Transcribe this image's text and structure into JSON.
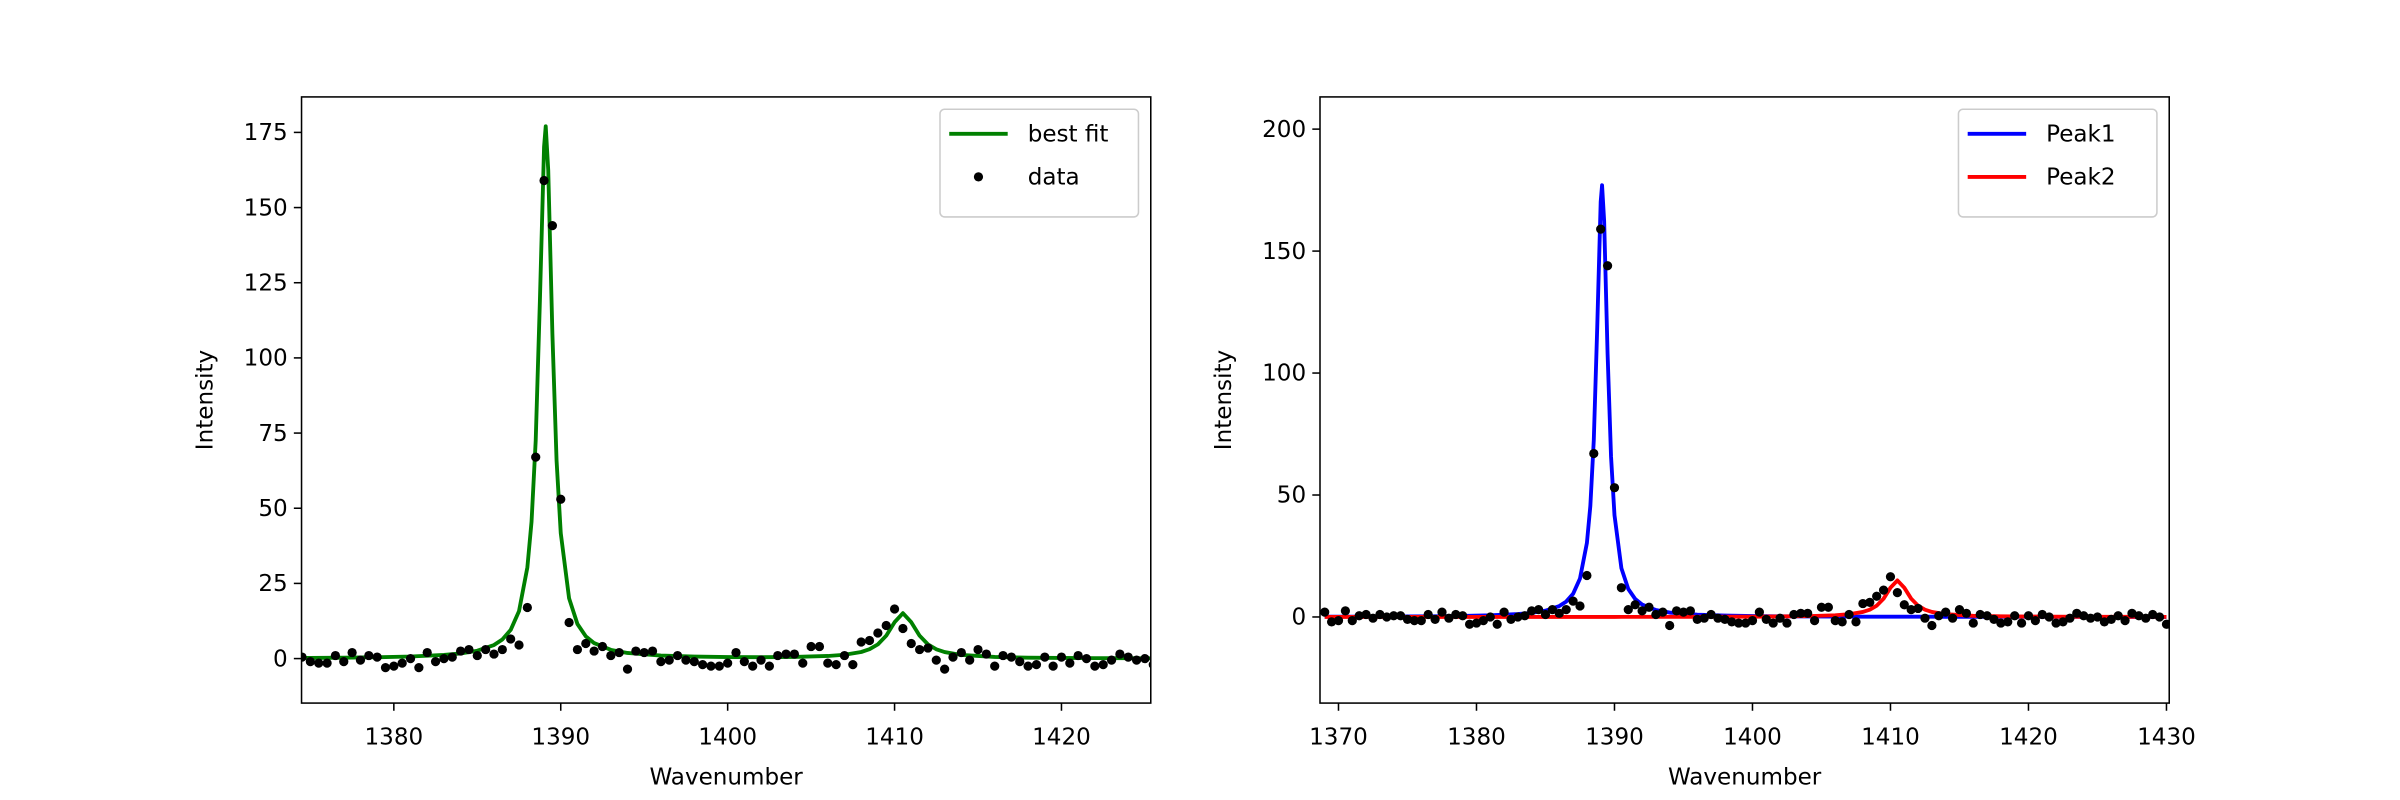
{
  "chart_data": [
    {
      "type": "line",
      "xlabel": "Wavenumber",
      "ylabel": "Intensity",
      "xlim": [
        1374.47,
        1425.35
      ],
      "ylim": [
        -14.8,
        186.8
      ],
      "xticks": [
        1380,
        1390,
        1400,
        1410,
        1420
      ],
      "yticks": [
        0,
        25,
        50,
        75,
        100,
        125,
        150,
        175
      ],
      "legend": "upper right",
      "series": [
        {
          "name": "best fit",
          "color": "#008000",
          "type": "line",
          "x": [
            1369,
            1371,
            1373,
            1375,
            1377,
            1379,
            1381,
            1383,
            1384,
            1385,
            1386,
            1386.5,
            1387,
            1387.5,
            1388,
            1388.25,
            1388.5,
            1388.75,
            1389,
            1389.1,
            1389.25,
            1389.5,
            1389.75,
            1390,
            1390.5,
            1391,
            1391.5,
            1392,
            1393,
            1394,
            1396,
            1398,
            1400,
            1402,
            1404,
            1406,
            1407,
            1408,
            1408.5,
            1409,
            1409.5,
            1410,
            1410.5,
            1411,
            1411.5,
            1412,
            1412.5,
            1413,
            1414,
            1416,
            1418,
            1420,
            1422,
            1424,
            1426,
            1428,
            1430
          ],
          "values": [
            0.12,
            0.15,
            0.18,
            0.23,
            0.31,
            0.45,
            0.69,
            1.2,
            1.71,
            2.61,
            4.51,
            6.34,
            9.53,
            15.78,
            30.34,
            45.53,
            72.53,
            118.83,
            170.23,
            177.03,
            162.43,
            107.93,
            65.83,
            41.73,
            20.04,
            11.5,
            7.4,
            5.15,
            2.91,
            1.87,
            0.99,
            0.66,
            0.5,
            0.47,
            0.55,
            0.86,
            1.27,
            2.19,
            3.12,
            4.73,
            7.6,
            12.1,
            15.1,
            12.1,
            7.6,
            4.72,
            3.1,
            2.17,
            1.2,
            0.54,
            0.31,
            0.21,
            0.15,
            0.12,
            0.09,
            0.08,
            0.07
          ]
        },
        {
          "name": "data",
          "color": "#000000",
          "type": "scatter",
          "x": [
            1374.5,
            1375,
            1375.5,
            1376,
            1376.5,
            1377,
            1377.5,
            1378,
            1378.5,
            1379,
            1379.5,
            1380,
            1380.5,
            1381,
            1381.5,
            1382,
            1382.5,
            1383,
            1383.5,
            1384,
            1384.5,
            1385,
            1385.5,
            1386,
            1386.5,
            1387,
            1387.5,
            1388,
            1388.5,
            1389,
            1389.5,
            1390,
            1390.5,
            1391,
            1391.5,
            1392,
            1392.5,
            1393,
            1393.5,
            1394,
            1394.5,
            1395,
            1395.5,
            1396,
            1396.5,
            1397,
            1397.5,
            1398,
            1398.5,
            1399,
            1399.5,
            1400,
            1400.5,
            1401,
            1401.5,
            1402,
            1402.5,
            1403,
            1403.5,
            1404,
            1404.5,
            1405,
            1405.5,
            1406,
            1406.5,
            1407,
            1407.5,
            1408,
            1408.5,
            1409,
            1409.5,
            1410,
            1410.5,
            1411,
            1411.5,
            1412,
            1412.5,
            1413,
            1413.5,
            1414,
            1414.5,
            1415,
            1415.5,
            1416,
            1416.5,
            1417,
            1417.5,
            1418,
            1418.5,
            1419,
            1419.5,
            1420,
            1420.5,
            1421,
            1421.5,
            1422,
            1422.5,
            1423,
            1423.5,
            1424,
            1424.5,
            1425,
            1425.5
          ],
          "values": [
            0.5,
            -1,
            -1.5,
            -1.5,
            1,
            -1,
            2,
            -0.5,
            1,
            0.5,
            -3,
            -2.5,
            -1.5,
            0,
            -3,
            2,
            -1,
            0,
            0.5,
            2.5,
            3,
            1,
            3,
            1.5,
            3,
            6.5,
            4.5,
            17,
            67,
            159,
            144,
            53,
            12,
            3,
            5,
            2.5,
            4,
            1,
            2,
            -3.5,
            2.5,
            2,
            2.5,
            -1,
            -0.5,
            1,
            -0.5,
            -1,
            -2,
            -2.5,
            -2.5,
            -1.5,
            2,
            -1,
            -2.5,
            -0.5,
            -2.5,
            1,
            1.5,
            1.5,
            -1.5,
            4,
            4,
            -1.5,
            -2,
            1,
            -2,
            5.5,
            6,
            8.5,
            11,
            16.5,
            10,
            5,
            3,
            3.5,
            -0.5,
            -3.5,
            0.5,
            2,
            -0.5,
            3,
            1.5,
            -2.5,
            1,
            0.5,
            -1,
            -2.5,
            -2,
            0.5,
            -2.5,
            0.5,
            -1.5,
            1,
            0,
            -2.5,
            -2,
            -0.5,
            1.5,
            0.5,
            -0.5,
            0,
            -2
          ]
        }
      ]
    },
    {
      "type": "line",
      "xlabel": "Wavenumber",
      "ylabel": "Intensity",
      "xlim": [
        1368.66,
        1430.2
      ],
      "ylim": [
        -35.3,
        213.2
      ],
      "xticks": [
        1370,
        1380,
        1390,
        1400,
        1410,
        1420,
        1430
      ],
      "yticks": [
        0,
        50,
        100,
        150,
        200
      ],
      "legend": "upper right",
      "series": [
        {
          "name": "Peak1",
          "color": "#0000ff",
          "type": "line",
          "x": [
            1369,
            1371,
            1373,
            1375,
            1377,
            1379,
            1381,
            1383,
            1384,
            1385,
            1386,
            1386.5,
            1387,
            1387.5,
            1388,
            1388.25,
            1388.5,
            1388.75,
            1389,
            1389.1,
            1389.25,
            1389.5,
            1389.75,
            1390,
            1390.5,
            1391,
            1391.5,
            1392,
            1393,
            1394,
            1396,
            1398,
            1400,
            1402,
            1404,
            1406,
            1407,
            1408,
            1408.5,
            1409,
            1409.5,
            1410,
            1410.5,
            1411,
            1411.5,
            1412,
            1412.5,
            1413,
            1414,
            1416,
            1418,
            1420,
            1422,
            1424,
            1426,
            1428,
            1430
          ],
          "values": [
            0.11,
            0.14,
            0.17,
            0.22,
            0.3,
            0.43,
            0.67,
            1.18,
            1.69,
            2.59,
            4.49,
            6.31,
            9.5,
            15.75,
            30.31,
            45.5,
            72.5,
            118.8,
            170.2,
            177,
            162.4,
            107.9,
            65.8,
            41.7,
            20,
            11.46,
            7.36,
            5.11,
            2.86,
            1.82,
            0.92,
            0.56,
            0.37,
            0.27,
            0.2,
            0.15,
            0.14,
            0.12,
            0.12,
            0.11,
            0.1,
            0.1,
            0.1,
            0.1,
            0.1,
            0.1,
            0.1,
            0.1,
            0.07,
            0.06,
            0.05,
            0.05,
            0.04,
            0.04,
            0.03,
            0.03,
            0.03
          ]
        },
        {
          "name": "Peak2",
          "color": "#ff0000",
          "type": "line",
          "x": [
            1369,
            1371,
            1373,
            1375,
            1377,
            1379,
            1381,
            1383,
            1384,
            1385,
            1386,
            1386.5,
            1387,
            1387.5,
            1388,
            1388.25,
            1388.5,
            1388.75,
            1389,
            1389.1,
            1389.25,
            1389.5,
            1389.75,
            1390,
            1390.5,
            1391,
            1391.5,
            1392,
            1393,
            1394,
            1396,
            1398,
            1400,
            1402,
            1404,
            1406,
            1407,
            1408,
            1408.5,
            1409,
            1409.5,
            1410,
            1410.5,
            1411,
            1411.5,
            1412,
            1412.5,
            1413,
            1414,
            1416,
            1418,
            1420,
            1422,
            1424,
            1426,
            1428,
            1430
          ],
          "values": [
            0.01,
            0.01,
            0.01,
            0.01,
            0.01,
            0.02,
            0.02,
            0.02,
            0.02,
            0.02,
            0.02,
            0.03,
            0.03,
            0.03,
            0.03,
            0.03,
            0.03,
            0.03,
            0.03,
            0.03,
            0.03,
            0.03,
            0.03,
            0.03,
            0.04,
            0.04,
            0.04,
            0.04,
            0.05,
            0.05,
            0.07,
            0.1,
            0.13,
            0.2,
            0.35,
            0.71,
            1.13,
            2.07,
            3,
            4.62,
            7.5,
            12,
            15,
            12,
            7.5,
            4.62,
            3,
            2.07,
            1.13,
            0.48,
            0.26,
            0.16,
            0.11,
            0.08,
            0.06,
            0.05,
            0.04
          ]
        },
        {
          "color": "#000000",
          "type": "scatter",
          "x": [
            1369,
            1369.5,
            1370,
            1370.5,
            1371,
            1371.5,
            1372,
            1372.5,
            1373,
            1373.5,
            1374,
            1374.5,
            1375,
            1375.5,
            1376,
            1376.5,
            1377,
            1377.5,
            1378,
            1378.5,
            1379,
            1379.5,
            1380,
            1380.5,
            1381,
            1381.5,
            1382,
            1382.5,
            1383,
            1383.5,
            1384,
            1384.5,
            1385,
            1385.5,
            1386,
            1386.5,
            1387,
            1387.5,
            1388,
            1388.5,
            1389,
            1389.5,
            1390,
            1390.5,
            1391,
            1391.5,
            1392,
            1392.5,
            1393,
            1393.5,
            1394,
            1394.5,
            1395,
            1395.5,
            1396,
            1396.5,
            1397,
            1397.5,
            1398,
            1398.5,
            1399,
            1399.5,
            1400,
            1400.5,
            1401,
            1401.5,
            1402,
            1402.5,
            1403,
            1403.5,
            1404,
            1404.5,
            1405,
            1405.5,
            1406,
            1406.5,
            1407,
            1407.5,
            1408,
            1408.5,
            1409,
            1409.5,
            1410,
            1410.5,
            1411,
            1411.5,
            1412,
            1412.5,
            1413,
            1413.5,
            1414,
            1414.5,
            1415,
            1415.5,
            1416,
            1416.5,
            1417,
            1417.5,
            1418,
            1418.5,
            1419,
            1419.5,
            1420,
            1420.5,
            1421,
            1421.5,
            1422,
            1422.5,
            1423,
            1423.5,
            1424,
            1424.5,
            1425,
            1425.5,
            1426,
            1426.5,
            1427,
            1427.5,
            1428,
            1428.5,
            1429,
            1429.5,
            1430
          ],
          "values": [
            2,
            -2,
            -1.5,
            2.5,
            -1.5,
            0.5,
            1,
            -0.5,
            1,
            0,
            0.5,
            0.5,
            -1,
            -1.5,
            -1.5,
            1,
            -1,
            2,
            -0.5,
            1,
            0.5,
            -3,
            -2.5,
            -1.5,
            0,
            -3,
            2,
            -1,
            0,
            0.5,
            2.5,
            3,
            1,
            3,
            1.5,
            3,
            6.5,
            4.5,
            17,
            67,
            159,
            144,
            53,
            12,
            3,
            5,
            2.5,
            4,
            1,
            2,
            -3.5,
            2.5,
            2,
            2.5,
            -1,
            -0.5,
            1,
            -0.5,
            -1,
            -2,
            -2.5,
            -2.5,
            -1.5,
            2,
            -1,
            -2.5,
            -0.5,
            -2.5,
            1,
            1.5,
            1.5,
            -1.5,
            4,
            4,
            -1.5,
            -2,
            1,
            -2,
            5.5,
            6,
            8.5,
            11,
            16.5,
            10,
            5,
            3,
            3.5,
            -0.5,
            -3.5,
            0.5,
            2,
            -0.5,
            3,
            1.5,
            -2.5,
            1,
            0.5,
            -1,
            -2.5,
            -2,
            0.5,
            -2.5,
            0.5,
            -1.5,
            1,
            0,
            -2.5,
            -2,
            -0.5,
            1.5,
            0.5,
            -0.5,
            0,
            -2,
            -1,
            0.5,
            -1.5,
            1.5,
            0.5,
            -0.5,
            1,
            0,
            -3
          ]
        }
      ]
    }
  ]
}
